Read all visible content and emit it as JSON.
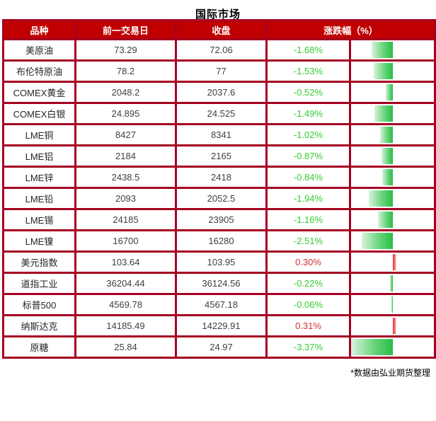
{
  "title": "国际市场",
  "footer": {
    "note": "*数据由弘业期货整理"
  },
  "colors": {
    "header_bg": "#c00000",
    "header_text": "#ffffff",
    "border": "#a50021",
    "label_text": "#262626",
    "number_text": "#404040",
    "down_green": "#33cc33",
    "up_red": "#cc3333",
    "bar_green": "#2ec04c",
    "bar_red": "#ef2b35"
  },
  "table": {
    "headers": [
      "品种",
      "前一交易日",
      "收盘",
      "涨跌幅（%）"
    ],
    "rows": [
      {
        "variety": "美原油",
        "prev": "73.29",
        "close": "72.06",
        "change": "-1.68%",
        "change_value": -1.68
      },
      {
        "variety": "布伦特原油",
        "prev": "78.2",
        "close": "77",
        "change": "-1.53%",
        "change_value": -1.53
      },
      {
        "variety": "COMEX黄金",
        "prev": "2048.2",
        "close": "2037.6",
        "change": "-0.52%",
        "change_value": -0.52
      },
      {
        "variety": "COMEX白银",
        "prev": "24.895",
        "close": "24.525",
        "change": "-1.49%",
        "change_value": -1.49
      },
      {
        "variety": "LME铜",
        "prev": "8427",
        "close": "8341",
        "change": "-1.02%",
        "change_value": -1.02
      },
      {
        "variety": "LME铝",
        "prev": "2184",
        "close": "2165",
        "change": "-0.87%",
        "change_value": -0.87
      },
      {
        "variety": "LME锌",
        "prev": "2438.5",
        "close": "2418",
        "change": "-0.84%",
        "change_value": -0.84
      },
      {
        "variety": "LME铅",
        "prev": "2093",
        "close": "2052.5",
        "change": "-1.94%",
        "change_value": -1.94
      },
      {
        "variety": "LME锡",
        "prev": "24185",
        "close": "23905",
        "change": "-1.16%",
        "change_value": -1.16
      },
      {
        "variety": "LME镍",
        "prev": "16700",
        "close": "16280",
        "change": "-2.51%",
        "change_value": -2.51
      },
      {
        "variety": "美元指数",
        "prev": "103.64",
        "close": "103.95",
        "change": "0.30%",
        "change_value": 0.3
      },
      {
        "variety": "道指工业",
        "prev": "36204.44",
        "close": "36124.56",
        "change": "-0.22%",
        "change_value": -0.22
      },
      {
        "variety": "标普500",
        "prev": "4569.78",
        "close": "4567.18",
        "change": "-0.06%",
        "change_value": -0.06
      },
      {
        "variety": "纳斯达克",
        "prev": "14185.49",
        "close": "14229.91",
        "change": "0.31%",
        "change_value": 0.31
      },
      {
        "variety": "原糖",
        "prev": "25.84",
        "close": "24.97",
        "change": "-3.37%",
        "change_value": -3.37
      }
    ]
  },
  "chart_data": {
    "type": "table",
    "title": "国际市场",
    "columns": [
      "品种",
      "前一交易日",
      "收盘",
      "涨跌幅（%）"
    ],
    "rows": [
      [
        "美原油",
        73.29,
        72.06,
        -1.68
      ],
      [
        "布伦特原油",
        78.2,
        77,
        -1.53
      ],
      [
        "COMEX黄金",
        2048.2,
        2037.6,
        -0.52
      ],
      [
        "COMEX白银",
        24.895,
        24.525,
        -1.49
      ],
      [
        "LME铜",
        8427,
        8341,
        -1.02
      ],
      [
        "LME铝",
        2184,
        2165,
        -0.87
      ],
      [
        "LME锌",
        2438.5,
        2418,
        -0.84
      ],
      [
        "LME铅",
        2093,
        2052.5,
        -1.94
      ],
      [
        "LME锡",
        24185,
        23905,
        -1.16
      ],
      [
        "LME镍",
        16700,
        16280,
        -2.51
      ],
      [
        "美元指数",
        103.64,
        103.95,
        0.3
      ],
      [
        "道指工业",
        36204.44,
        36124.56,
        -0.22
      ],
      [
        "标普500",
        4569.78,
        4567.18,
        -0.06
      ],
      [
        "纳斯达克",
        14185.49,
        14229.91,
        0.31
      ],
      [
        "原糖",
        25.84,
        24.97,
        -3.37
      ]
    ],
    "databar": {
      "column": "涨跌幅（%）",
      "baseline": "center of last column",
      "negative": "green bar extends left",
      "positive": "red bar extends right",
      "scale_max_abs_pct": 3.37
    }
  }
}
